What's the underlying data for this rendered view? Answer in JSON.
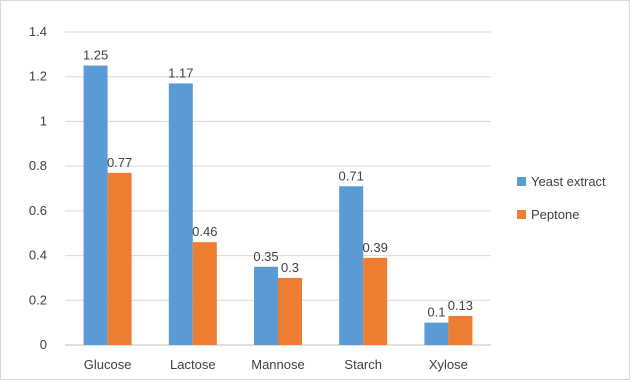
{
  "chart_data": {
    "type": "bar",
    "categories": [
      "Glucose",
      "Lactose",
      "Mannose",
      "Starch",
      "Xylose"
    ],
    "series": [
      {
        "name": "Yeast extract",
        "color": "#5b9bd5",
        "values": [
          1.25,
          1.17,
          0.35,
          0.71,
          0.1
        ]
      },
      {
        "name": "Peptone",
        "color": "#ed7d31",
        "values": [
          0.77,
          0.46,
          0.3,
          0.39,
          0.13
        ]
      }
    ],
    "data_labels": [
      [
        "1.25",
        "1.17",
        "0.35",
        "0.71",
        "0.1"
      ],
      [
        "0.77",
        "0.46",
        "0.3",
        "0.39",
        "0.13"
      ]
    ],
    "yticks": [
      "0",
      "0.2",
      "0.4",
      "0.6",
      "0.8",
      "1",
      "1.2",
      "1.4"
    ],
    "ylim": [
      0,
      1.4
    ],
    "grid": true,
    "legend": "right",
    "title": "",
    "xlabel": "",
    "ylabel": ""
  }
}
